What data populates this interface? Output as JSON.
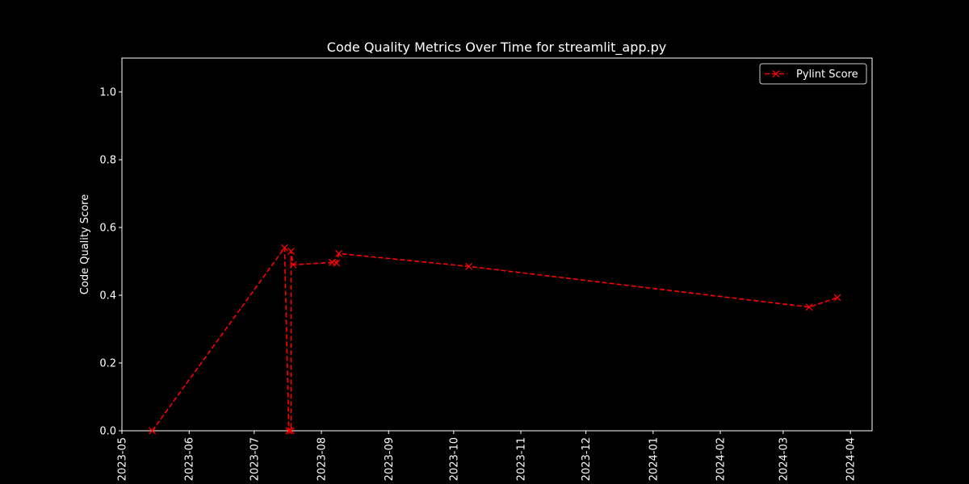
{
  "chart_data": {
    "type": "line",
    "title": "Code Quality Metrics Over Time for streamlit_app.py",
    "xlabel": "",
    "ylabel": "Code Quality Score",
    "xlim": [
      "2023-05-01",
      "2024-04-11"
    ],
    "ylim": [
      0,
      1.1
    ],
    "x_ticks": [
      "2023-05",
      "2023-06",
      "2023-07",
      "2023-08",
      "2023-09",
      "2023-10",
      "2023-11",
      "2023-12",
      "2024-01",
      "2024-02",
      "2024-03",
      "2024-04"
    ],
    "y_ticks": [
      "0.0",
      "0.2",
      "0.4",
      "0.6",
      "0.8",
      "1.0"
    ],
    "grid": false,
    "legend": "upper-right",
    "colors": {
      "background": "#000000",
      "foreground": "#ffffff",
      "series": "#ff0000"
    },
    "series": [
      {
        "name": "Pylint Score",
        "line_style": "dashed",
        "marker": "x",
        "points": [
          {
            "x": "2023-05-15",
            "y": 0.0
          },
          {
            "x": "2023-07-15",
            "y": 0.54
          },
          {
            "x": "2023-07-17",
            "y": 0.0
          },
          {
            "x": "2023-07-18",
            "y": 0.0
          },
          {
            "x": "2023-07-18",
            "y": 0.53
          },
          {
            "x": "2023-07-19",
            "y": 0.49
          },
          {
            "x": "2023-08-06",
            "y": 0.497
          },
          {
            "x": "2023-08-08",
            "y": 0.495
          },
          {
            "x": "2023-08-09",
            "y": 0.523
          },
          {
            "x": "2023-10-08",
            "y": 0.485
          },
          {
            "x": "2024-03-13",
            "y": 0.365
          },
          {
            "x": "2024-03-26",
            "y": 0.393
          }
        ]
      }
    ]
  }
}
